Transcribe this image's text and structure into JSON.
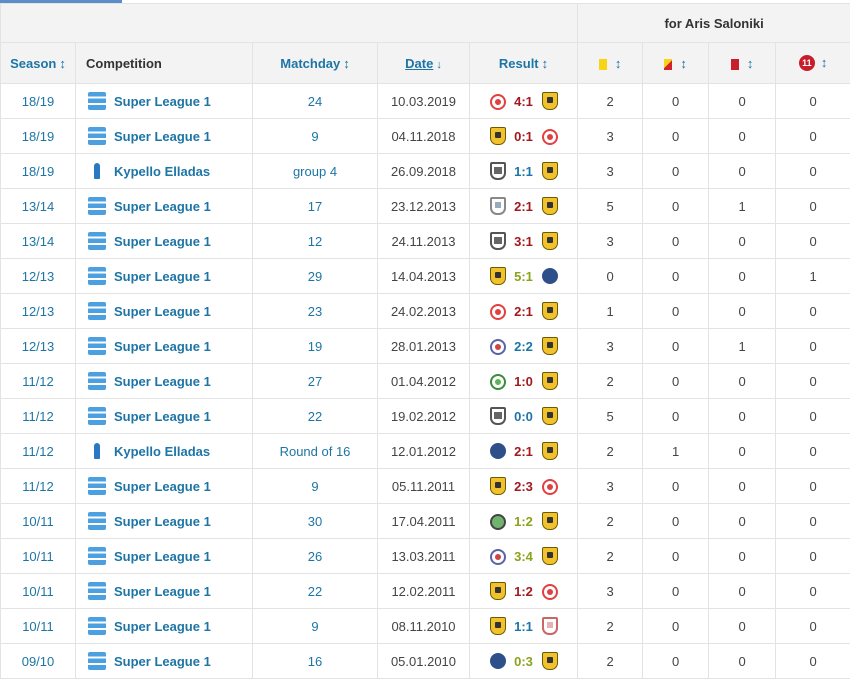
{
  "header": {
    "group_caption": "for Aris Saloniki",
    "col_season": "Season",
    "col_competition": "Competition",
    "col_matchday": "Matchday",
    "col_date": "Date",
    "col_result": "Result",
    "sort_glyph": "↕",
    "sort_desc_glyph": "↓",
    "penalty_label": "11"
  },
  "colors": {
    "win": "#a3191e",
    "draw": "#1d75a6",
    "loss": "#8aa31d"
  },
  "rows": [
    {
      "season": "18/19",
      "competition": "Super League 1",
      "comp_logo": "super-league-logo",
      "matchday": "24",
      "date": "10.03.2019",
      "home_crest": "olympiakos-crest",
      "score": "4:1",
      "score_color": "#a3191e",
      "away_crest": "aris-crest",
      "yellow": "2",
      "yellow_red": "0",
      "red": "0",
      "penalties": "0"
    },
    {
      "season": "18/19",
      "competition": "Super League 1",
      "comp_logo": "super-league-logo",
      "matchday": "9",
      "date": "04.11.2018",
      "home_crest": "aris-crest",
      "score": "0:1",
      "score_color": "#a3191e",
      "away_crest": "olympiakos-crest",
      "yellow": "3",
      "yellow_red": "0",
      "red": "0",
      "penalties": "0"
    },
    {
      "season": "18/19",
      "competition": "Kypello Elladas",
      "comp_logo": "kypello-logo",
      "matchday": "group 4",
      "date": "26.09.2018",
      "home_crest": "paok-crest",
      "score": "1:1",
      "score_color": "#1d75a6",
      "away_crest": "aris-crest",
      "yellow": "3",
      "yellow_red": "0",
      "red": "0",
      "penalties": "0"
    },
    {
      "season": "13/14",
      "competition": "Super League 1",
      "comp_logo": "super-league-logo",
      "matchday": "17",
      "date": "23.12.2013",
      "home_crest": "shield-grey-crest",
      "score": "2:1",
      "score_color": "#a3191e",
      "away_crest": "aris-crest",
      "yellow": "5",
      "yellow_red": "0",
      "red": "1",
      "penalties": "0"
    },
    {
      "season": "13/14",
      "competition": "Super League 1",
      "comp_logo": "super-league-logo",
      "matchday": "12",
      "date": "24.11.2013",
      "home_crest": "paok-crest",
      "score": "3:1",
      "score_color": "#a3191e",
      "away_crest": "aris-crest",
      "yellow": "3",
      "yellow_red": "0",
      "red": "0",
      "penalties": "0"
    },
    {
      "season": "12/13",
      "competition": "Super League 1",
      "comp_logo": "super-league-logo",
      "matchday": "29",
      "date": "14.04.2013",
      "home_crest": "aris-crest",
      "score": "5:1",
      "score_color": "#8aa31d",
      "away_crest": "star-crest",
      "yellow": "0",
      "yellow_red": "0",
      "red": "0",
      "penalties": "1"
    },
    {
      "season": "12/13",
      "competition": "Super League 1",
      "comp_logo": "super-league-logo",
      "matchday": "23",
      "date": "24.02.2013",
      "home_crest": "olympiakos-crest",
      "score": "2:1",
      "score_color": "#a3191e",
      "away_crest": "aris-crest",
      "yellow": "1",
      "yellow_red": "0",
      "red": "0",
      "penalties": "0"
    },
    {
      "season": "12/13",
      "competition": "Super League 1",
      "comp_logo": "super-league-logo",
      "matchday": "19",
      "date": "28.01.2013",
      "home_crest": "round-blue-crest",
      "score": "2:2",
      "score_color": "#1d75a6",
      "away_crest": "aris-crest",
      "yellow": "3",
      "yellow_red": "0",
      "red": "1",
      "penalties": "0"
    },
    {
      "season": "11/12",
      "competition": "Super League 1",
      "comp_logo": "super-league-logo",
      "matchday": "27",
      "date": "01.04.2012",
      "home_crest": "panathinaikos-crest",
      "score": "1:0",
      "score_color": "#a3191e",
      "away_crest": "aris-crest",
      "yellow": "2",
      "yellow_red": "0",
      "red": "0",
      "penalties": "0"
    },
    {
      "season": "11/12",
      "competition": "Super League 1",
      "comp_logo": "super-league-logo",
      "matchday": "22",
      "date": "19.02.2012",
      "home_crest": "paok-crest",
      "score": "0:0",
      "score_color": "#1d75a6",
      "away_crest": "aris-crest",
      "yellow": "5",
      "yellow_red": "0",
      "red": "0",
      "penalties": "0"
    },
    {
      "season": "11/12",
      "competition": "Kypello Elladas",
      "comp_logo": "kypello-logo",
      "matchday": "Round of 16",
      "date": "12.01.2012",
      "home_crest": "star-crest",
      "score": "2:1",
      "score_color": "#a3191e",
      "away_crest": "aris-crest",
      "yellow": "2",
      "yellow_red": "1",
      "red": "0",
      "penalties": "0"
    },
    {
      "season": "11/12",
      "competition": "Super League 1",
      "comp_logo": "super-league-logo",
      "matchday": "9",
      "date": "05.11.2011",
      "home_crest": "aris-crest",
      "score": "2:3",
      "score_color": "#a3191e",
      "away_crest": "olympiakos-crest",
      "yellow": "3",
      "yellow_red": "0",
      "red": "0",
      "penalties": "0"
    },
    {
      "season": "10/11",
      "competition": "Super League 1",
      "comp_logo": "super-league-logo",
      "matchday": "30",
      "date": "17.04.2011",
      "home_crest": "round-green-crest",
      "score": "1:2",
      "score_color": "#8aa31d",
      "away_crest": "aris-crest",
      "yellow": "2",
      "yellow_red": "0",
      "red": "0",
      "penalties": "0"
    },
    {
      "season": "10/11",
      "competition": "Super League 1",
      "comp_logo": "super-league-logo",
      "matchday": "26",
      "date": "13.03.2011",
      "home_crest": "round-blue-crest",
      "score": "3:4",
      "score_color": "#8aa31d",
      "away_crest": "aris-crest",
      "yellow": "2",
      "yellow_red": "0",
      "red": "0",
      "penalties": "0"
    },
    {
      "season": "10/11",
      "competition": "Super League 1",
      "comp_logo": "super-league-logo",
      "matchday": "22",
      "date": "12.02.2011",
      "home_crest": "aris-crest",
      "score": "1:2",
      "score_color": "#a3191e",
      "away_crest": "olympiakos-crest",
      "yellow": "3",
      "yellow_red": "0",
      "red": "0",
      "penalties": "0"
    },
    {
      "season": "10/11",
      "competition": "Super League 1",
      "comp_logo": "super-league-logo",
      "matchday": "9",
      "date": "08.11.2010",
      "home_crest": "aris-crest",
      "score": "1:1",
      "score_color": "#1d75a6",
      "away_crest": "shield-red-crest",
      "yellow": "2",
      "yellow_red": "0",
      "red": "0",
      "penalties": "0"
    },
    {
      "season": "09/10",
      "competition": "Super League 1",
      "comp_logo": "super-league-logo",
      "matchday": "16",
      "date": "05.01.2010",
      "home_crest": "star-crest",
      "score": "0:3",
      "score_color": "#8aa31d",
      "away_crest": "aris-crest",
      "yellow": "2",
      "yellow_red": "0",
      "red": "0",
      "penalties": "0"
    }
  ]
}
